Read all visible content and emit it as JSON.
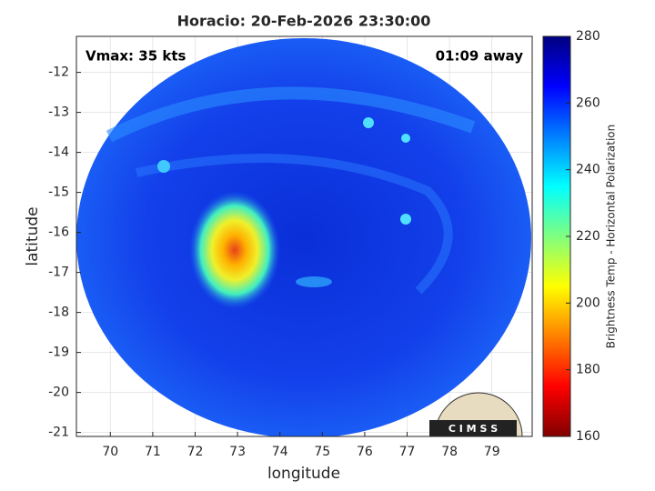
{
  "chart_data": {
    "type": "image",
    "title": "Horacio: 20-Feb-2026 23:30:00",
    "annotations": [
      "Vmax: 35 kts",
      "01:09 away"
    ],
    "xlabel": "longitude",
    "ylabel": "latitude",
    "xlim": [
      69.2,
      79.95
    ],
    "ylim": [
      -21.1,
      -11.1
    ],
    "xticks": [
      70,
      71,
      72,
      73,
      74,
      75,
      76,
      77,
      78,
      79
    ],
    "yticks": [
      -21,
      -20,
      -19,
      -18,
      -17,
      -16,
      -15,
      -14,
      -13,
      -12
    ],
    "grid": true,
    "colorbar": {
      "label": "Brightness Temp - Horizontal Polarization",
      "lim": [
        160,
        280
      ],
      "ticks": [
        160,
        180,
        200,
        220,
        240,
        260,
        280
      ],
      "colormap": "jet"
    },
    "logo": "C I M S S"
  }
}
